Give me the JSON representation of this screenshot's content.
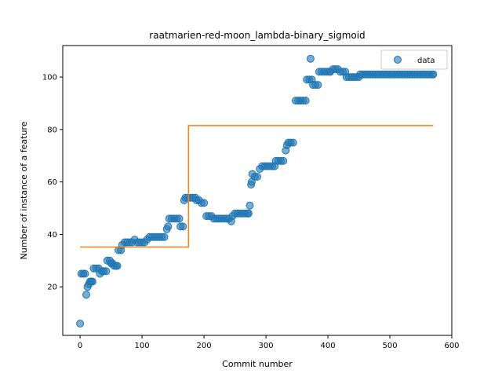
{
  "chart_data": {
    "type": "scatter",
    "title": "raatmarien-red-moon_lambda-binary_sigmoid",
    "xlabel": "Commit number",
    "ylabel": "Number of instance of a feature",
    "xlim": [
      -28,
      600
    ],
    "ylim": [
      1.5,
      112
    ],
    "xticks": [
      0,
      100,
      200,
      300,
      400,
      500,
      600
    ],
    "yticks": [
      20,
      40,
      60,
      80,
      100
    ],
    "xtick_labels": [
      "0",
      "100",
      "200",
      "300",
      "400",
      "500",
      "600"
    ],
    "ytick_labels": [
      "20",
      "40",
      "60",
      "80",
      "100"
    ],
    "legend": {
      "position": "top-right",
      "entries": [
        "data"
      ]
    },
    "grid": false,
    "series": [
      {
        "name": "data",
        "kind": "scatter",
        "color": "#1f77b4",
        "points": [
          [
            0,
            6
          ],
          [
            2,
            25
          ],
          [
            5,
            25
          ],
          [
            8,
            25
          ],
          [
            10,
            17
          ],
          [
            12,
            20
          ],
          [
            14,
            21
          ],
          [
            16,
            22
          ],
          [
            18,
            22
          ],
          [
            20,
            22
          ],
          [
            22,
            27
          ],
          [
            26,
            27
          ],
          [
            30,
            27
          ],
          [
            32,
            25
          ],
          [
            35,
            26
          ],
          [
            38,
            26
          ],
          [
            42,
            26
          ],
          [
            44,
            30
          ],
          [
            48,
            30
          ],
          [
            50,
            29
          ],
          [
            52,
            29
          ],
          [
            55,
            28
          ],
          [
            58,
            28
          ],
          [
            60,
            28
          ],
          [
            62,
            34
          ],
          [
            66,
            34
          ],
          [
            68,
            36
          ],
          [
            72,
            37
          ],
          [
            76,
            37
          ],
          [
            80,
            37
          ],
          [
            84,
            37
          ],
          [
            88,
            38
          ],
          [
            92,
            37
          ],
          [
            96,
            37
          ],
          [
            100,
            37
          ],
          [
            104,
            37
          ],
          [
            108,
            38
          ],
          [
            112,
            39
          ],
          [
            116,
            39
          ],
          [
            120,
            39
          ],
          [
            124,
            39
          ],
          [
            128,
            39
          ],
          [
            132,
            39
          ],
          [
            136,
            39
          ],
          [
            140,
            42
          ],
          [
            142,
            43
          ],
          [
            144,
            46
          ],
          [
            148,
            46
          ],
          [
            152,
            46
          ],
          [
            156,
            46
          ],
          [
            160,
            46
          ],
          [
            162,
            43
          ],
          [
            166,
            43
          ],
          [
            168,
            53
          ],
          [
            170,
            54
          ],
          [
            174,
            54
          ],
          [
            178,
            54
          ],
          [
            182,
            54
          ],
          [
            186,
            54
          ],
          [
            188,
            53
          ],
          [
            192,
            53
          ],
          [
            196,
            52
          ],
          [
            200,
            52
          ],
          [
            204,
            47
          ],
          [
            208,
            47
          ],
          [
            212,
            47
          ],
          [
            216,
            46
          ],
          [
            220,
            46
          ],
          [
            224,
            46
          ],
          [
            228,
            46
          ],
          [
            232,
            46
          ],
          [
            236,
            46
          ],
          [
            240,
            46
          ],
          [
            244,
            45
          ],
          [
            246,
            47
          ],
          [
            250,
            48
          ],
          [
            254,
            48
          ],
          [
            258,
            48
          ],
          [
            262,
            48
          ],
          [
            266,
            48
          ],
          [
            270,
            48
          ],
          [
            272,
            48
          ],
          [
            274,
            51
          ],
          [
            276,
            59
          ],
          [
            277,
            60
          ],
          [
            278,
            63
          ],
          [
            282,
            62
          ],
          [
            286,
            62
          ],
          [
            290,
            65
          ],
          [
            294,
            66
          ],
          [
            298,
            66
          ],
          [
            302,
            66
          ],
          [
            306,
            66
          ],
          [
            310,
            66
          ],
          [
            314,
            66
          ],
          [
            316,
            68
          ],
          [
            320,
            68
          ],
          [
            324,
            68
          ],
          [
            328,
            68
          ],
          [
            332,
            72
          ],
          [
            334,
            74
          ],
          [
            336,
            75
          ],
          [
            340,
            75
          ],
          [
            344,
            75
          ],
          [
            348,
            91
          ],
          [
            352,
            91
          ],
          [
            356,
            91
          ],
          [
            360,
            91
          ],
          [
            364,
            91
          ],
          [
            366,
            99
          ],
          [
            370,
            99
          ],
          [
            372,
            107
          ],
          [
            374,
            99
          ],
          [
            376,
            97
          ],
          [
            380,
            97
          ],
          [
            384,
            97
          ],
          [
            386,
            102
          ],
          [
            390,
            102
          ],
          [
            394,
            102
          ],
          [
            398,
            102
          ],
          [
            402,
            102
          ],
          [
            404,
            102
          ],
          [
            408,
            103
          ],
          [
            412,
            103
          ],
          [
            416,
            103
          ],
          [
            420,
            102
          ],
          [
            424,
            102
          ],
          [
            428,
            102
          ],
          [
            430,
            100
          ],
          [
            434,
            100
          ],
          [
            438,
            100
          ],
          [
            442,
            100
          ],
          [
            446,
            100
          ],
          [
            450,
            100
          ],
          [
            452,
            101
          ],
          [
            456,
            101
          ],
          [
            460,
            101
          ],
          [
            464,
            101
          ],
          [
            468,
            101
          ],
          [
            472,
            101
          ],
          [
            476,
            101
          ],
          [
            480,
            101
          ],
          [
            484,
            101
          ],
          [
            488,
            101
          ],
          [
            492,
            101
          ],
          [
            496,
            101
          ],
          [
            500,
            101
          ],
          [
            504,
            101
          ],
          [
            508,
            101
          ],
          [
            512,
            101
          ],
          [
            516,
            101
          ],
          [
            520,
            101
          ],
          [
            524,
            101
          ],
          [
            528,
            101
          ],
          [
            532,
            101
          ],
          [
            536,
            101
          ],
          [
            540,
            101
          ],
          [
            544,
            101
          ],
          [
            548,
            101
          ],
          [
            552,
            101
          ],
          [
            556,
            101
          ],
          [
            560,
            101
          ],
          [
            564,
            101
          ],
          [
            568,
            101
          ],
          [
            570,
            101
          ]
        ]
      },
      {
        "name": "",
        "kind": "step",
        "color": "#ff7f0e",
        "points": [
          [
            0,
            35.2
          ],
          [
            175,
            35.2
          ],
          [
            175,
            81.5
          ],
          [
            570,
            81.5
          ]
        ]
      }
    ]
  }
}
